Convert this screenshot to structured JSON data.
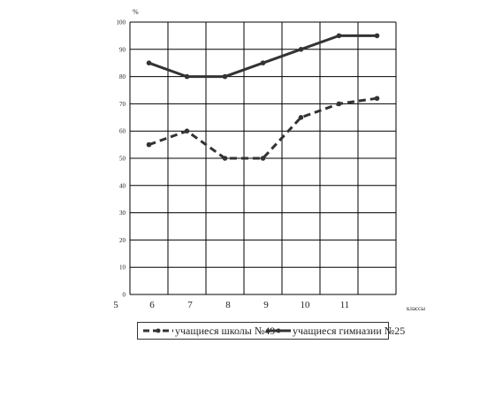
{
  "chart_data": {
    "type": "line",
    "y_unit_label": "%",
    "x_unit_label": "классы",
    "x_ticks": [
      "5",
      "6",
      "7",
      "8",
      "9",
      "10",
      "11"
    ],
    "y_ticks": [
      "0",
      "10",
      "20",
      "30",
      "40",
      "50",
      "60",
      "70",
      "80",
      "90",
      "100"
    ],
    "ylim": [
      0,
      100
    ],
    "grid": true,
    "legend_position": "bottom",
    "series": [
      {
        "name": "учащиеся школы №49",
        "line_style": "dashed",
        "color": "#333333",
        "x": [
          6,
          7,
          8,
          9,
          10,
          11,
          12
        ],
        "values": [
          55,
          60,
          50,
          50,
          65,
          70,
          72
        ]
      },
      {
        "name": "учащиеся гимназии №25",
        "line_style": "solid",
        "color": "#333333",
        "x": [
          6,
          7,
          8,
          9,
          10,
          11,
          12
        ],
        "values": [
          85,
          80,
          80,
          85,
          90,
          95,
          95
        ]
      }
    ]
  }
}
